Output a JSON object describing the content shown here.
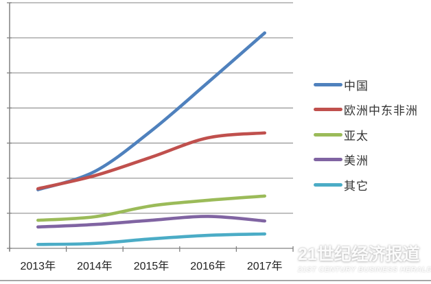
{
  "chart_data": {
    "type": "line",
    "title": "",
    "x_categories": [
      "2013年",
      "2014年",
      "2015年",
      "2016年",
      "2017年"
    ],
    "y_axis": {
      "tick_labels_visible": false,
      "gridlines": 8,
      "ylim": [
        0,
        7
      ],
      "units": "gridline intervals (axis tick labels not legible in source)",
      "grid": true
    },
    "legend_position": "right",
    "line_style": "smoothed, thick",
    "series": [
      {
        "id": "china",
        "name": "中国",
        "color": "#4F81BD",
        "values": [
          1.67,
          2.19,
          3.35,
          4.73,
          6.14
        ]
      },
      {
        "id": "europe-mideast-africa",
        "name": "欧洲中东非洲",
        "color": "#C0504D",
        "values": [
          1.7,
          2.07,
          2.6,
          3.15,
          3.29
        ]
      },
      {
        "id": "asia-pacific",
        "name": "亚太",
        "color": "#9BBB59",
        "values": [
          0.8,
          0.9,
          1.21,
          1.37,
          1.49
        ]
      },
      {
        "id": "americas",
        "name": "美洲",
        "color": "#8064A2",
        "values": [
          0.61,
          0.68,
          0.8,
          0.91,
          0.78
        ]
      },
      {
        "id": "others",
        "name": "其它",
        "color": "#4BACC6",
        "values": [
          0.11,
          0.14,
          0.27,
          0.37,
          0.41
        ]
      }
    ]
  },
  "watermark": {
    "title": "21世纪经济报道",
    "subtitle": "21ST CENTURY BUSINESS HERALD"
  },
  "colors": {
    "gridline": "#9a9a9a",
    "axis": "#808080",
    "bottom_rule": "#a6a6a6",
    "label_text": "#1f1f1f"
  }
}
